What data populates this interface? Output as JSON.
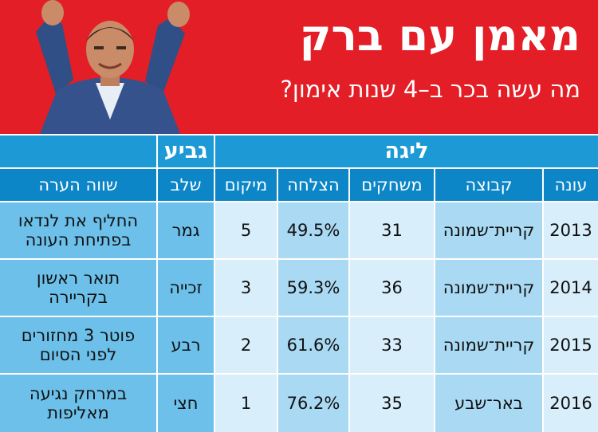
{
  "header": {
    "title": "מאמן עם ברק",
    "subtitle": "מה עשה בכר ב–4 שנות אימון?"
  },
  "groups": {
    "league": "ליגה",
    "cup": "גביע"
  },
  "columns": {
    "season": "עונה",
    "team": "קבוצה",
    "games": "משחקים",
    "success": "הצלחה",
    "position": "מיקום",
    "stage": "שלב",
    "note": "שווה הערה"
  },
  "rows": [
    {
      "season": "2013",
      "team": "קריית־שמונה",
      "games": "31",
      "success": "49.5%",
      "position": "5",
      "stage": "גמר",
      "note_line1": "החליף את לנדאו",
      "note_line2": "בפתיחת העונה"
    },
    {
      "season": "2014",
      "team": "קריית־שמונה",
      "games": "36",
      "success": "59.3%",
      "position": "3",
      "stage": "זכייה",
      "note_line1": "תואר ראשון",
      "note_line2": "בקריירה"
    },
    {
      "season": "2015",
      "team": "קריית־שמונה",
      "games": "33",
      "success": "61.6%",
      "position": "2",
      "stage": "רבע",
      "note_line1": "פוטר 3 מחזורים",
      "note_line2": "לפני הסיום"
    },
    {
      "season": "2016",
      "team": "באר־שבע",
      "games": "35",
      "success": "76.2%",
      "position": "1",
      "stage": "חצי",
      "note_line1": "במרחק נגיעה",
      "note_line2": "מאליפות"
    }
  ],
  "colors": {
    "header_red": "#e31e26",
    "header_blue": "#1d9ad6",
    "subheader_blue": "#0c86c6"
  }
}
